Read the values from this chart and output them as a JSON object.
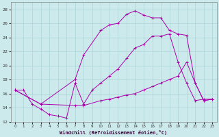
{
  "xlabel": "Windchill (Refroidissement éolien,°C)",
  "bg_color": "#cce9ec",
  "grid_color": "#aad4d8",
  "line_color": "#aa00aa",
  "xlim": [
    -0.5,
    23.5
  ],
  "ylim": [
    12,
    29
  ],
  "xticks": [
    0,
    1,
    2,
    3,
    4,
    5,
    6,
    7,
    8,
    9,
    10,
    11,
    12,
    13,
    14,
    15,
    16,
    17,
    18,
    19,
    20,
    21,
    22,
    23
  ],
  "yticks": [
    12,
    14,
    16,
    18,
    20,
    22,
    24,
    26,
    28
  ],
  "line1_x": [
    0,
    1,
    2,
    3,
    4,
    5,
    6,
    7,
    8,
    9,
    10,
    11,
    12,
    13,
    14,
    15,
    16,
    17,
    18,
    19,
    20,
    21,
    22,
    23
  ],
  "line1_y": [
    16.5,
    16.5,
    14.5,
    13.8,
    13.0,
    12.8,
    12.5,
    17.5,
    14.5,
    16.5,
    17.5,
    18.5,
    19.5,
    21.0,
    22.5,
    23.0,
    24.2,
    24.2,
    24.5,
    20.5,
    17.5,
    15.0,
    15.2,
    15.2
  ],
  "line2_x": [
    0,
    3,
    7,
    8,
    10,
    11,
    12,
    13,
    14,
    15,
    16,
    17,
    18,
    19,
    20,
    21,
    22,
    23
  ],
  "line2_y": [
    16.5,
    14.5,
    18.0,
    21.5,
    25.0,
    25.8,
    26.0,
    27.3,
    27.8,
    27.2,
    26.8,
    26.8,
    25.0,
    24.5,
    24.3,
    17.5,
    15.0,
    15.2
  ],
  "line3_x": [
    0,
    3,
    7,
    8,
    10,
    11,
    12,
    13,
    14,
    15,
    16,
    17,
    18,
    19,
    20,
    21,
    22,
    23
  ],
  "line3_y": [
    16.5,
    14.5,
    14.3,
    14.3,
    15.0,
    15.2,
    15.5,
    15.8,
    16.0,
    16.5,
    17.0,
    17.5,
    18.0,
    18.5,
    20.5,
    17.5,
    15.0,
    15.2
  ]
}
